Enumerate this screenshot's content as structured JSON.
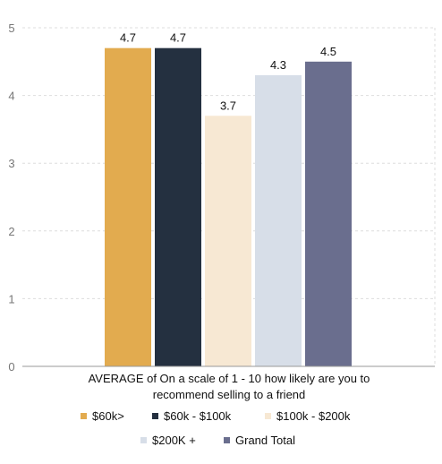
{
  "chart_data": {
    "type": "bar",
    "xlabel": "AVERAGE of On a scale of 1 - 10 how likely are you to recommend selling to a friend",
    "ylim": [
      0,
      5
    ],
    "yticks": [
      0,
      1,
      2,
      3,
      4,
      5
    ],
    "grid": true,
    "legend_position": "bottom",
    "series": [
      {
        "name": "$60k>",
        "value": 4.7,
        "label": "4.7",
        "color": "#E2AB4F"
      },
      {
        "name": "$60k - $100k",
        "value": 4.7,
        "label": "4.7",
        "color": "#243040"
      },
      {
        "name": "$100k - $200k",
        "value": 3.7,
        "label": "3.7",
        "color": "#F7E8D3"
      },
      {
        "name": "$200K +",
        "value": 4.3,
        "label": "4.3",
        "color": "#D7DEE8"
      },
      {
        "name": "Grand Total",
        "value": 4.5,
        "label": "4.5",
        "color": "#6A6E8E"
      }
    ]
  }
}
